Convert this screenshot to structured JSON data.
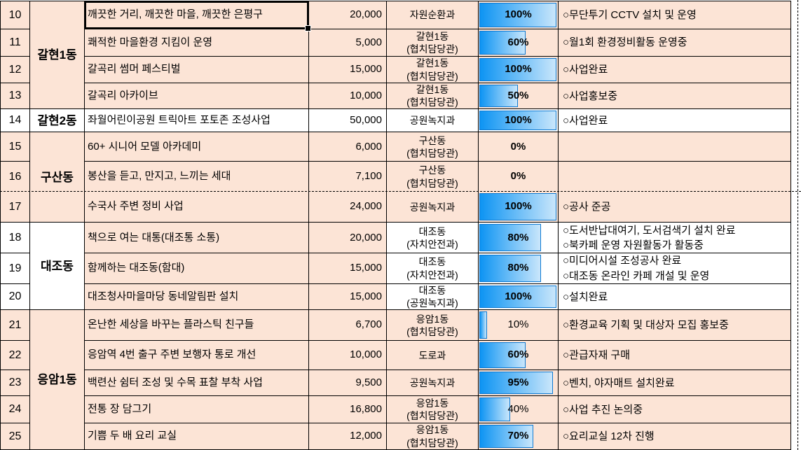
{
  "colors": {
    "row_bg_peach": "#fce4d6",
    "row_bg_white": "#ffffff",
    "bar_fill_start": "#0d94f3",
    "bar_fill_end": "#c9e6fb",
    "bar_border": "#0f7ad2",
    "grid": "#000000"
  },
  "district_groups": [
    {
      "district": "갈현1동",
      "start_no": "10",
      "span": 4,
      "bg": "peach"
    },
    {
      "district": "갈현2동",
      "start_no": "14",
      "span": 1,
      "bg": "white"
    },
    {
      "district": "구산동",
      "start_no": "15",
      "span": 3,
      "bg": "peach"
    },
    {
      "district": "대조동",
      "start_no": "18",
      "span": 3,
      "bg": "white"
    },
    {
      "district": "응암1동",
      "start_no": "21",
      "span": 5,
      "bg": "peach"
    }
  ],
  "rows": [
    {
      "no": "10",
      "project": "깨끗한 거리, 깨끗한 마을, 깨끗한 은평구",
      "budget": "20,000",
      "dept": "자원순환과",
      "percent": 100,
      "percent_label": "100%",
      "percent_bold": true,
      "note": "○무단투기 CCTV 설치 및 운영",
      "bg": "peach",
      "selected": true
    },
    {
      "no": "11",
      "project": "쾌적한 마을환경 지킴이 운영",
      "budget": "5,000",
      "dept": "갈현1동\n(협치담당관)",
      "percent": 60,
      "percent_label": "60%",
      "percent_bold": true,
      "note": "○월1회 환경정비활동 운영중",
      "bg": "peach"
    },
    {
      "no": "12",
      "project": "갈곡리 썸머 페스티벌",
      "budget": "15,000",
      "dept": "갈현1동\n(협치담당관)",
      "percent": 100,
      "percent_label": "100%",
      "percent_bold": true,
      "note": "○사업완료",
      "bg": "peach"
    },
    {
      "no": "13",
      "project": "갈곡리 아카이브",
      "budget": "10,000",
      "dept": "갈현1동\n(협치담당관)",
      "percent": 50,
      "percent_label": "50%",
      "percent_bold": true,
      "note": "○사업홍보중",
      "bg": "peach"
    },
    {
      "no": "14",
      "project": "좌월어린이공원 트릭아트 포토존 조성사업",
      "budget": "50,000",
      "dept": "공원녹지과",
      "percent": 100,
      "percent_label": "100%",
      "percent_bold": true,
      "note": "○사업완료",
      "bg": "white"
    },
    {
      "no": "15",
      "project": "60+ 시니어 모델 아카데미",
      "budget": "6,000",
      "dept": "구산동\n(협치담당관)",
      "percent": 0,
      "percent_label": "0%",
      "percent_bold": true,
      "note": "",
      "bg": "peach"
    },
    {
      "no": "16",
      "project": "봉산을 듣고, 만지고, 느끼는 세대",
      "budget": "7,100",
      "dept": "구산동\n(협치담당관)",
      "percent": 0,
      "percent_label": "0%",
      "percent_bold": true,
      "note": "",
      "bg": "peach"
    },
    {
      "no": "17",
      "project": "수국사 주변 정비 사업",
      "budget": "24,000",
      "dept": "공원녹지과",
      "percent": 100,
      "percent_label": "100%",
      "percent_bold": true,
      "note": "○공사 준공",
      "bg": "peach"
    },
    {
      "no": "18",
      "project": "책으로 여는 대통(대조통 소통)",
      "budget": "20,000",
      "dept": "대조동\n(자치안전과)",
      "percent": 80,
      "percent_label": "80%",
      "percent_bold": true,
      "note": "○도서반납대여기, 도서검색기 설치 완료\n○북카페 운영 자원활동가 활동중",
      "bg": "mixed"
    },
    {
      "no": "19",
      "project": "함께하는 대조동(함대)",
      "budget": "15,000",
      "dept": "대조동\n(자치안전과)",
      "percent": 80,
      "percent_label": "80%",
      "percent_bold": true,
      "note": "○미디어시설 조성공사 완료\n○대조동 온라인 카페 개설 및 운영",
      "bg": "mixed"
    },
    {
      "no": "20",
      "project": "대조청사마을마당 동네알림판 설치",
      "budget": "15,000",
      "dept": "대조동\n(공원녹지과)",
      "percent": 100,
      "percent_label": "100%",
      "percent_bold": true,
      "note": "○설치완료",
      "bg": "mixed"
    },
    {
      "no": "21",
      "project": "온난한 세상을 바꾸는 플라스틱 친구들",
      "budget": "6,700",
      "dept": "응암1동\n(협치담당관)",
      "percent": 10,
      "percent_label": "10%",
      "percent_bold": false,
      "note": "○환경교육 기획 및 대상자 모집 홍보중",
      "bg": "peach"
    },
    {
      "no": "22",
      "project": "응암역 4번 출구 주변 보행자 통로 개선",
      "budget": "10,000",
      "dept": "도로과",
      "percent": 60,
      "percent_label": "60%",
      "percent_bold": true,
      "note": "○관급자재 구매",
      "bg": "peach"
    },
    {
      "no": "23",
      "project": "백련산 쉼터 조성 및 수목 표찰 부착 사업",
      "budget": "9,500",
      "dept": "공원녹지과",
      "percent": 95,
      "percent_label": "95%",
      "percent_bold": true,
      "note": "○벤치, 야자매트 설치완료",
      "bg": "peach"
    },
    {
      "no": "24",
      "project": "전통 장 담그기",
      "budget": "16,800",
      "dept": "응암1동\n(협치담당관)",
      "percent": 40,
      "percent_label": "40%",
      "percent_bold": false,
      "note": "○사업 추진 논의중",
      "bg": "peach"
    },
    {
      "no": "25",
      "project": "기쁨 두 배 요리 교실",
      "budget": "12,000",
      "dept": "응암1동\n(협치담당관)",
      "percent": 70,
      "percent_label": "70%",
      "percent_bold": true,
      "note": "○요리교실 12차 진행",
      "bg": "peach"
    }
  ],
  "page_break": {
    "horizontal_after_row_no": "16",
    "vertical_at_right": true
  }
}
